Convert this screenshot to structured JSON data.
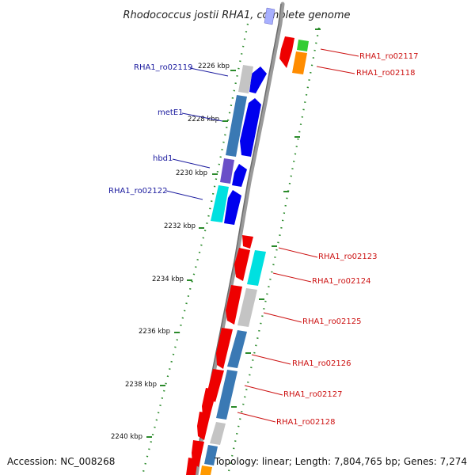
{
  "title": "Rhodococcus jostii RHA1, complete genome",
  "footer": {
    "accession": "Accession: NC_008268",
    "topology": "Topology: linear; Length: 7,804,765 bp; Genes: 7,274"
  },
  "kbp_labels": [
    "2226 kbp",
    "2228 kbp",
    "2230 kbp",
    "2232 kbp",
    "2234 kbp",
    "2236 kbp",
    "2238 kbp",
    "2240 kbp"
  ],
  "left_gene_labels": [
    "RHA1_ro02119",
    "metE1",
    "hbd1",
    "RHA1_ro02122"
  ],
  "right_gene_labels": [
    "RHA1_ro02117",
    "RHA1_ro02118",
    "RHA1_ro02123",
    "RHA1_ro02124",
    "RHA1_ro02125",
    "RHA1_ro02126",
    "RHA1_ro02127",
    "RHA1_ro02128"
  ],
  "colors": {
    "forward_strand": "#0000ee",
    "reverse_strand": "#ee0000",
    "backbone": "#808080",
    "tick": "#2a8a2a",
    "left_label": "#1a1a9e",
    "right_label": "#cc1111"
  }
}
